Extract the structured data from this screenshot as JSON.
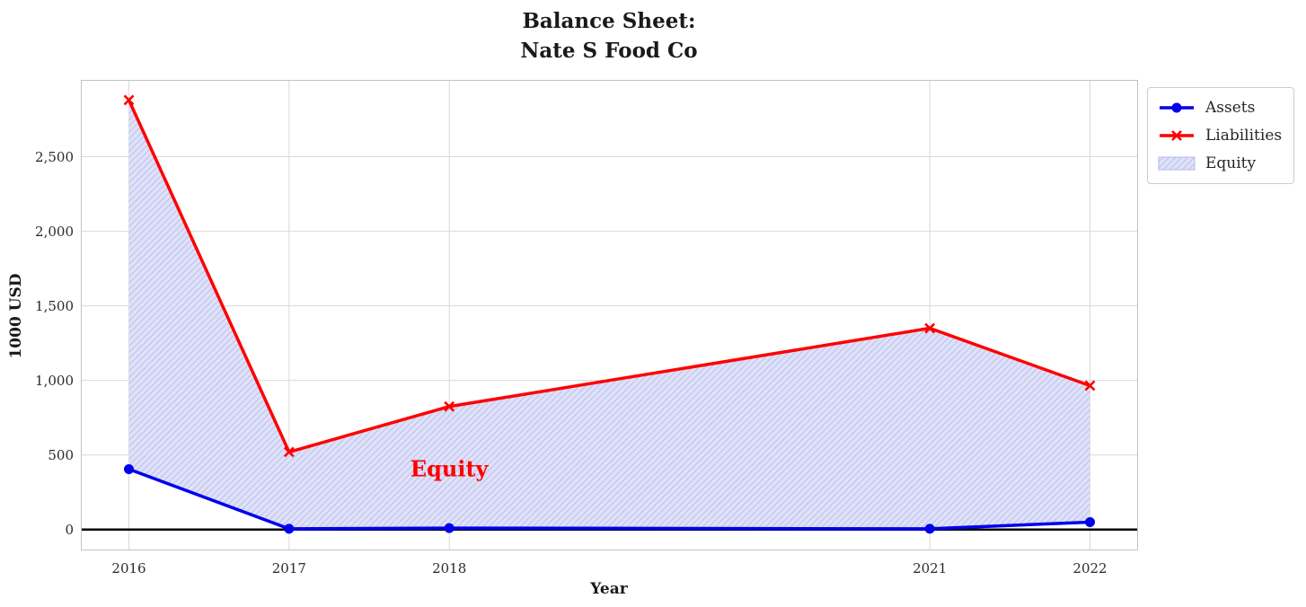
{
  "chart_data": {
    "type": "line",
    "title_lines": [
      "Balance Sheet:",
      "Nate S Food Co"
    ],
    "xlabel": "Year",
    "ylabel": "1000 USD",
    "x": [
      2016,
      2017,
      2018,
      2021,
      2022
    ],
    "xtick_labels": [
      "2016",
      "2017",
      "2018",
      "2021",
      "2022"
    ],
    "yticks": [
      0,
      500,
      1000,
      1500,
      2000,
      2500
    ],
    "ytick_labels": [
      "0",
      "500",
      "1,000",
      "1,500",
      "2,000",
      "2,500"
    ],
    "xlim": [
      2015.7,
      2022.3
    ],
    "ylim": [
      -140,
      3015
    ],
    "grid": true,
    "zero_line": true,
    "legend_position": "outside upper right",
    "series": [
      {
        "name": "Assets",
        "color": "#0000ee",
        "marker": "circle",
        "values": [
          405,
          5,
          10,
          5,
          50
        ]
      },
      {
        "name": "Liabilities",
        "color": "#ff0000",
        "marker": "x",
        "values": [
          2880,
          520,
          825,
          1350,
          965
        ]
      }
    ],
    "fill": {
      "label": "Equity",
      "between": [
        "Assets",
        "Liabilities"
      ],
      "fill_color": "#dfe1f8",
      "hatch": "///",
      "hatch_color": "#bdc2f0"
    },
    "annotation": {
      "text": "Equity",
      "x": 2018,
      "y": 410,
      "color": "#ff0000"
    },
    "colors": {
      "grid": "#d9d9d9",
      "spine": "#c2c2c6",
      "zero_line": "#000000",
      "text": "#262626"
    }
  }
}
